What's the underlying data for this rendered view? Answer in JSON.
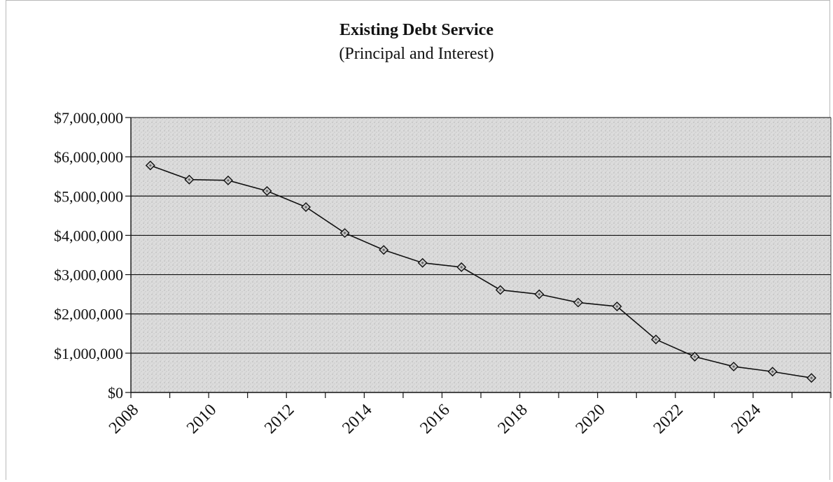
{
  "chart_data": {
    "type": "line",
    "title": "Existing Debt Service",
    "subtitle": "(Principal and Interest)",
    "xlabel": "",
    "ylabel": "",
    "x": [
      2008,
      2009,
      2010,
      2011,
      2012,
      2013,
      2014,
      2015,
      2016,
      2017,
      2018,
      2019,
      2020,
      2021,
      2022,
      2023,
      2024,
      2025
    ],
    "x_tick_labels": [
      "2008",
      "2010",
      "2012",
      "2014",
      "2016",
      "2018",
      "2020",
      "2022",
      "2024"
    ],
    "ylim": [
      0,
      7000000
    ],
    "y_tick_labels": [
      "$0",
      "$1,000,000",
      "$2,000,000",
      "$3,000,000",
      "$4,000,000",
      "$5,000,000",
      "$6,000,000",
      "$7,000,000"
    ],
    "series": [
      {
        "values": [
          5780000,
          5420000,
          5400000,
          5130000,
          4720000,
          4060000,
          3630000,
          3300000,
          3190000,
          2610000,
          2500000,
          2290000,
          2190000,
          1350000,
          910000,
          660000,
          530000,
          370000
        ]
      }
    ],
    "grid": true,
    "legend": "none",
    "colors": {
      "plot_background": "#d9d9d9",
      "line": "#111111",
      "marker_fill": "#c8c8c8",
      "gridline": "#111111"
    }
  }
}
